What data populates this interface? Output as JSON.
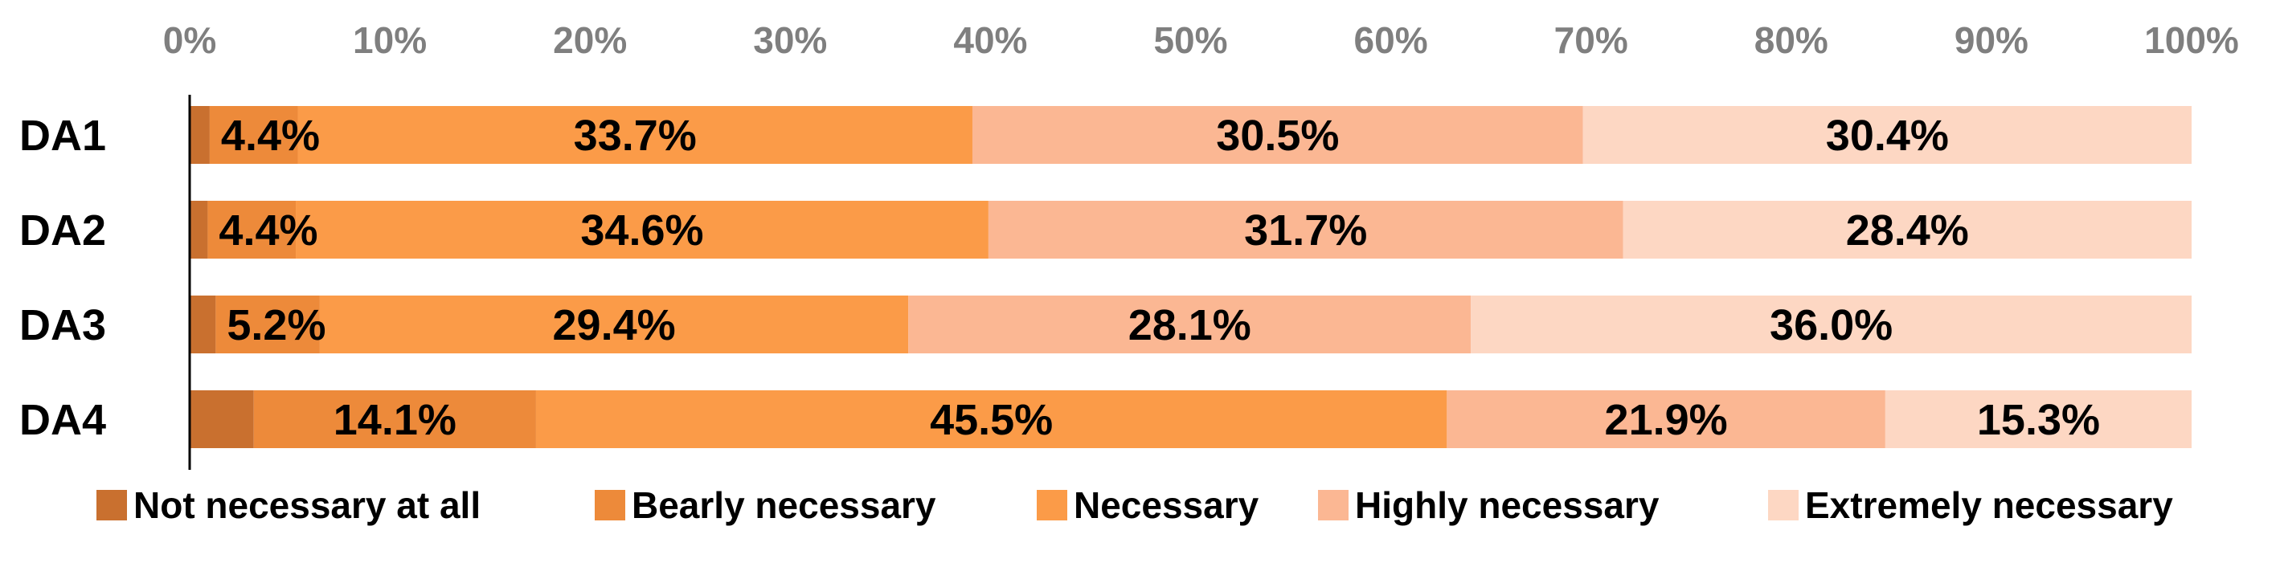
{
  "chart_data": {
    "type": "bar",
    "orientation": "horizontal",
    "stacked": true,
    "percent_stacked": true,
    "categories": [
      "DA1",
      "DA2",
      "DA3",
      "DA4"
    ],
    "xlim": [
      0,
      100
    ],
    "x_ticks": [
      "0%",
      "10%",
      "20%",
      "30%",
      "40%",
      "50%",
      "60%",
      "70%",
      "80%",
      "90%",
      "100%"
    ],
    "grid": false,
    "legend_position": "bottom",
    "series": [
      {
        "name": "Not necessary at all",
        "color": "#c9702f",
        "values": [
          1.0,
          0.9,
          1.3,
          3.2
        ],
        "labels": [
          "",
          "",
          "",
          ""
        ]
      },
      {
        "name": "Bearly necessary",
        "color": "#ed8a3a",
        "values": [
          4.4,
          4.4,
          5.2,
          14.1
        ],
        "labels": [
          "4.4%",
          "4.4%",
          "5.2%",
          "14.1%"
        ]
      },
      {
        "name": "Necessary",
        "color": "#fb9b48",
        "values": [
          33.7,
          34.6,
          29.4,
          45.5
        ],
        "labels": [
          "33.7%",
          "34.6%",
          "29.4%",
          "45.5%"
        ]
      },
      {
        "name": "Highly necessary",
        "color": "#fbb793",
        "values": [
          30.5,
          31.7,
          28.1,
          21.9
        ],
        "labels": [
          "30.5%",
          "31.7%",
          "28.1%",
          "21.9%"
        ]
      },
      {
        "name": "Extremely necessary",
        "color": "#fdd7c3",
        "values": [
          30.4,
          28.4,
          36.0,
          15.3
        ],
        "labels": [
          "30.4%",
          "28.4%",
          "36.0%",
          "15.3%"
        ]
      }
    ]
  }
}
